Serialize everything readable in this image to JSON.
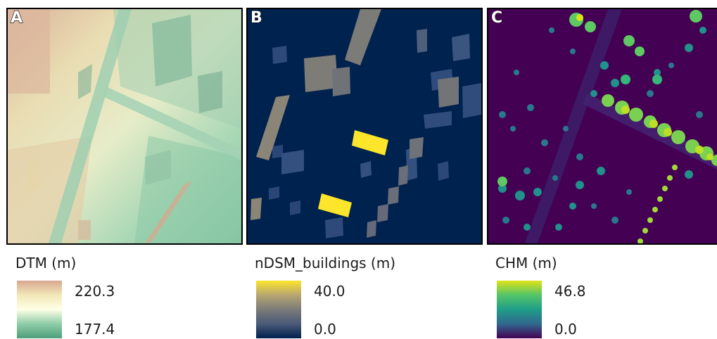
{
  "panels": [
    {
      "letter": "A",
      "legend_title": "DTM (m)",
      "max": "220.3",
      "min": "177.4",
      "ramp": [
        "#d6a890",
        "#f2e7b7",
        "#ffffe6",
        "#8fcda8",
        "#4d9e7a"
      ]
    },
    {
      "letter": "B",
      "legend_title": "nDSM_buildings (m)",
      "max": "40.0",
      "min": "0.0",
      "ramp": [
        "#fde52b",
        "#b8a672",
        "#7b7b78",
        "#4a5a78",
        "#00204d"
      ]
    },
    {
      "letter": "C",
      "legend_title": "CHM (m)",
      "max": "46.8",
      "min": "0.0",
      "ramp": [
        "#e0e319",
        "#54c568",
        "#1f9e89",
        "#31688e",
        "#440154"
      ]
    }
  ]
}
